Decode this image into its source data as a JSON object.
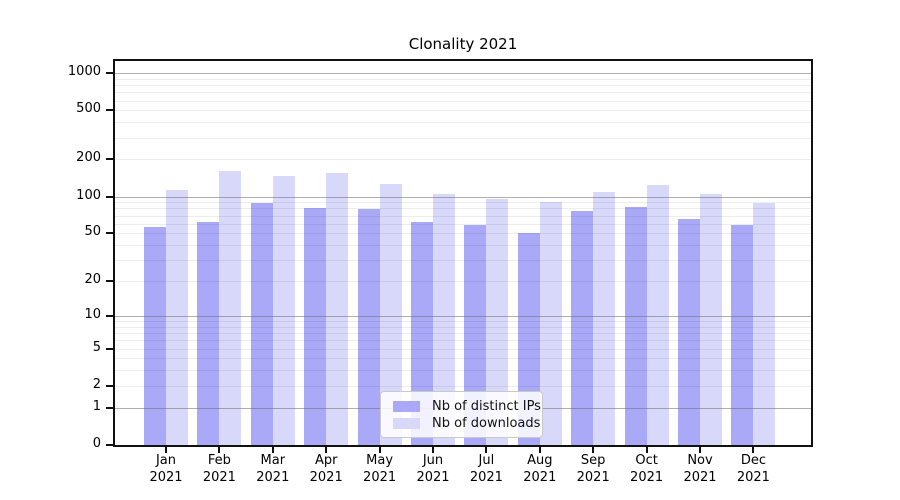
{
  "title": "Clonality 2021",
  "colors": {
    "distinct_ips": "#a9a9f8",
    "downloads": "#d8d8fa",
    "grid_major": "#6e6e6e",
    "grid_minor": "#e9e9e9",
    "axis": "#111111"
  },
  "legend": {
    "items": [
      {
        "key": "distinct-ips",
        "label": "Nb of distinct IPs",
        "color": "#a9a9f8"
      },
      {
        "key": "downloads",
        "label": "Nb of downloads",
        "color": "#d8d8fa"
      }
    ]
  },
  "y_axis": {
    "tick_labels": [
      "1000",
      "500",
      "200",
      "100",
      "50",
      "20",
      "10",
      "5",
      "2",
      "1",
      "0"
    ]
  },
  "chart_data": {
    "type": "bar",
    "title": "Clonality 2021",
    "xlabel": "",
    "ylabel": "",
    "scale": "symlog ln(1+x)",
    "grid": true,
    "legend_position": "lower center",
    "categories": [
      "Jan 2021",
      "Feb 2021",
      "Mar 2021",
      "Apr 2021",
      "May 2021",
      "Jun 2021",
      "Jul 2021",
      "Aug 2021",
      "Sep 2021",
      "Oct 2021",
      "Nov 2021",
      "Dec 2021"
    ],
    "series": [
      {
        "name": "Nb of distinct IPs",
        "values": [
          56,
          62,
          88,
          81,
          79,
          62,
          59,
          50,
          76,
          82,
          65,
          58
        ]
      },
      {
        "name": "Nb of downloads",
        "values": [
          114,
          162,
          148,
          155,
          126,
          105,
          95,
          90,
          108,
          125,
          104,
          88
        ]
      }
    ],
    "y_ticks": [
      1000,
      500,
      200,
      100,
      50,
      20,
      10,
      5,
      2,
      1,
      0
    ],
    "ylim": [
      0,
      1250
    ]
  }
}
